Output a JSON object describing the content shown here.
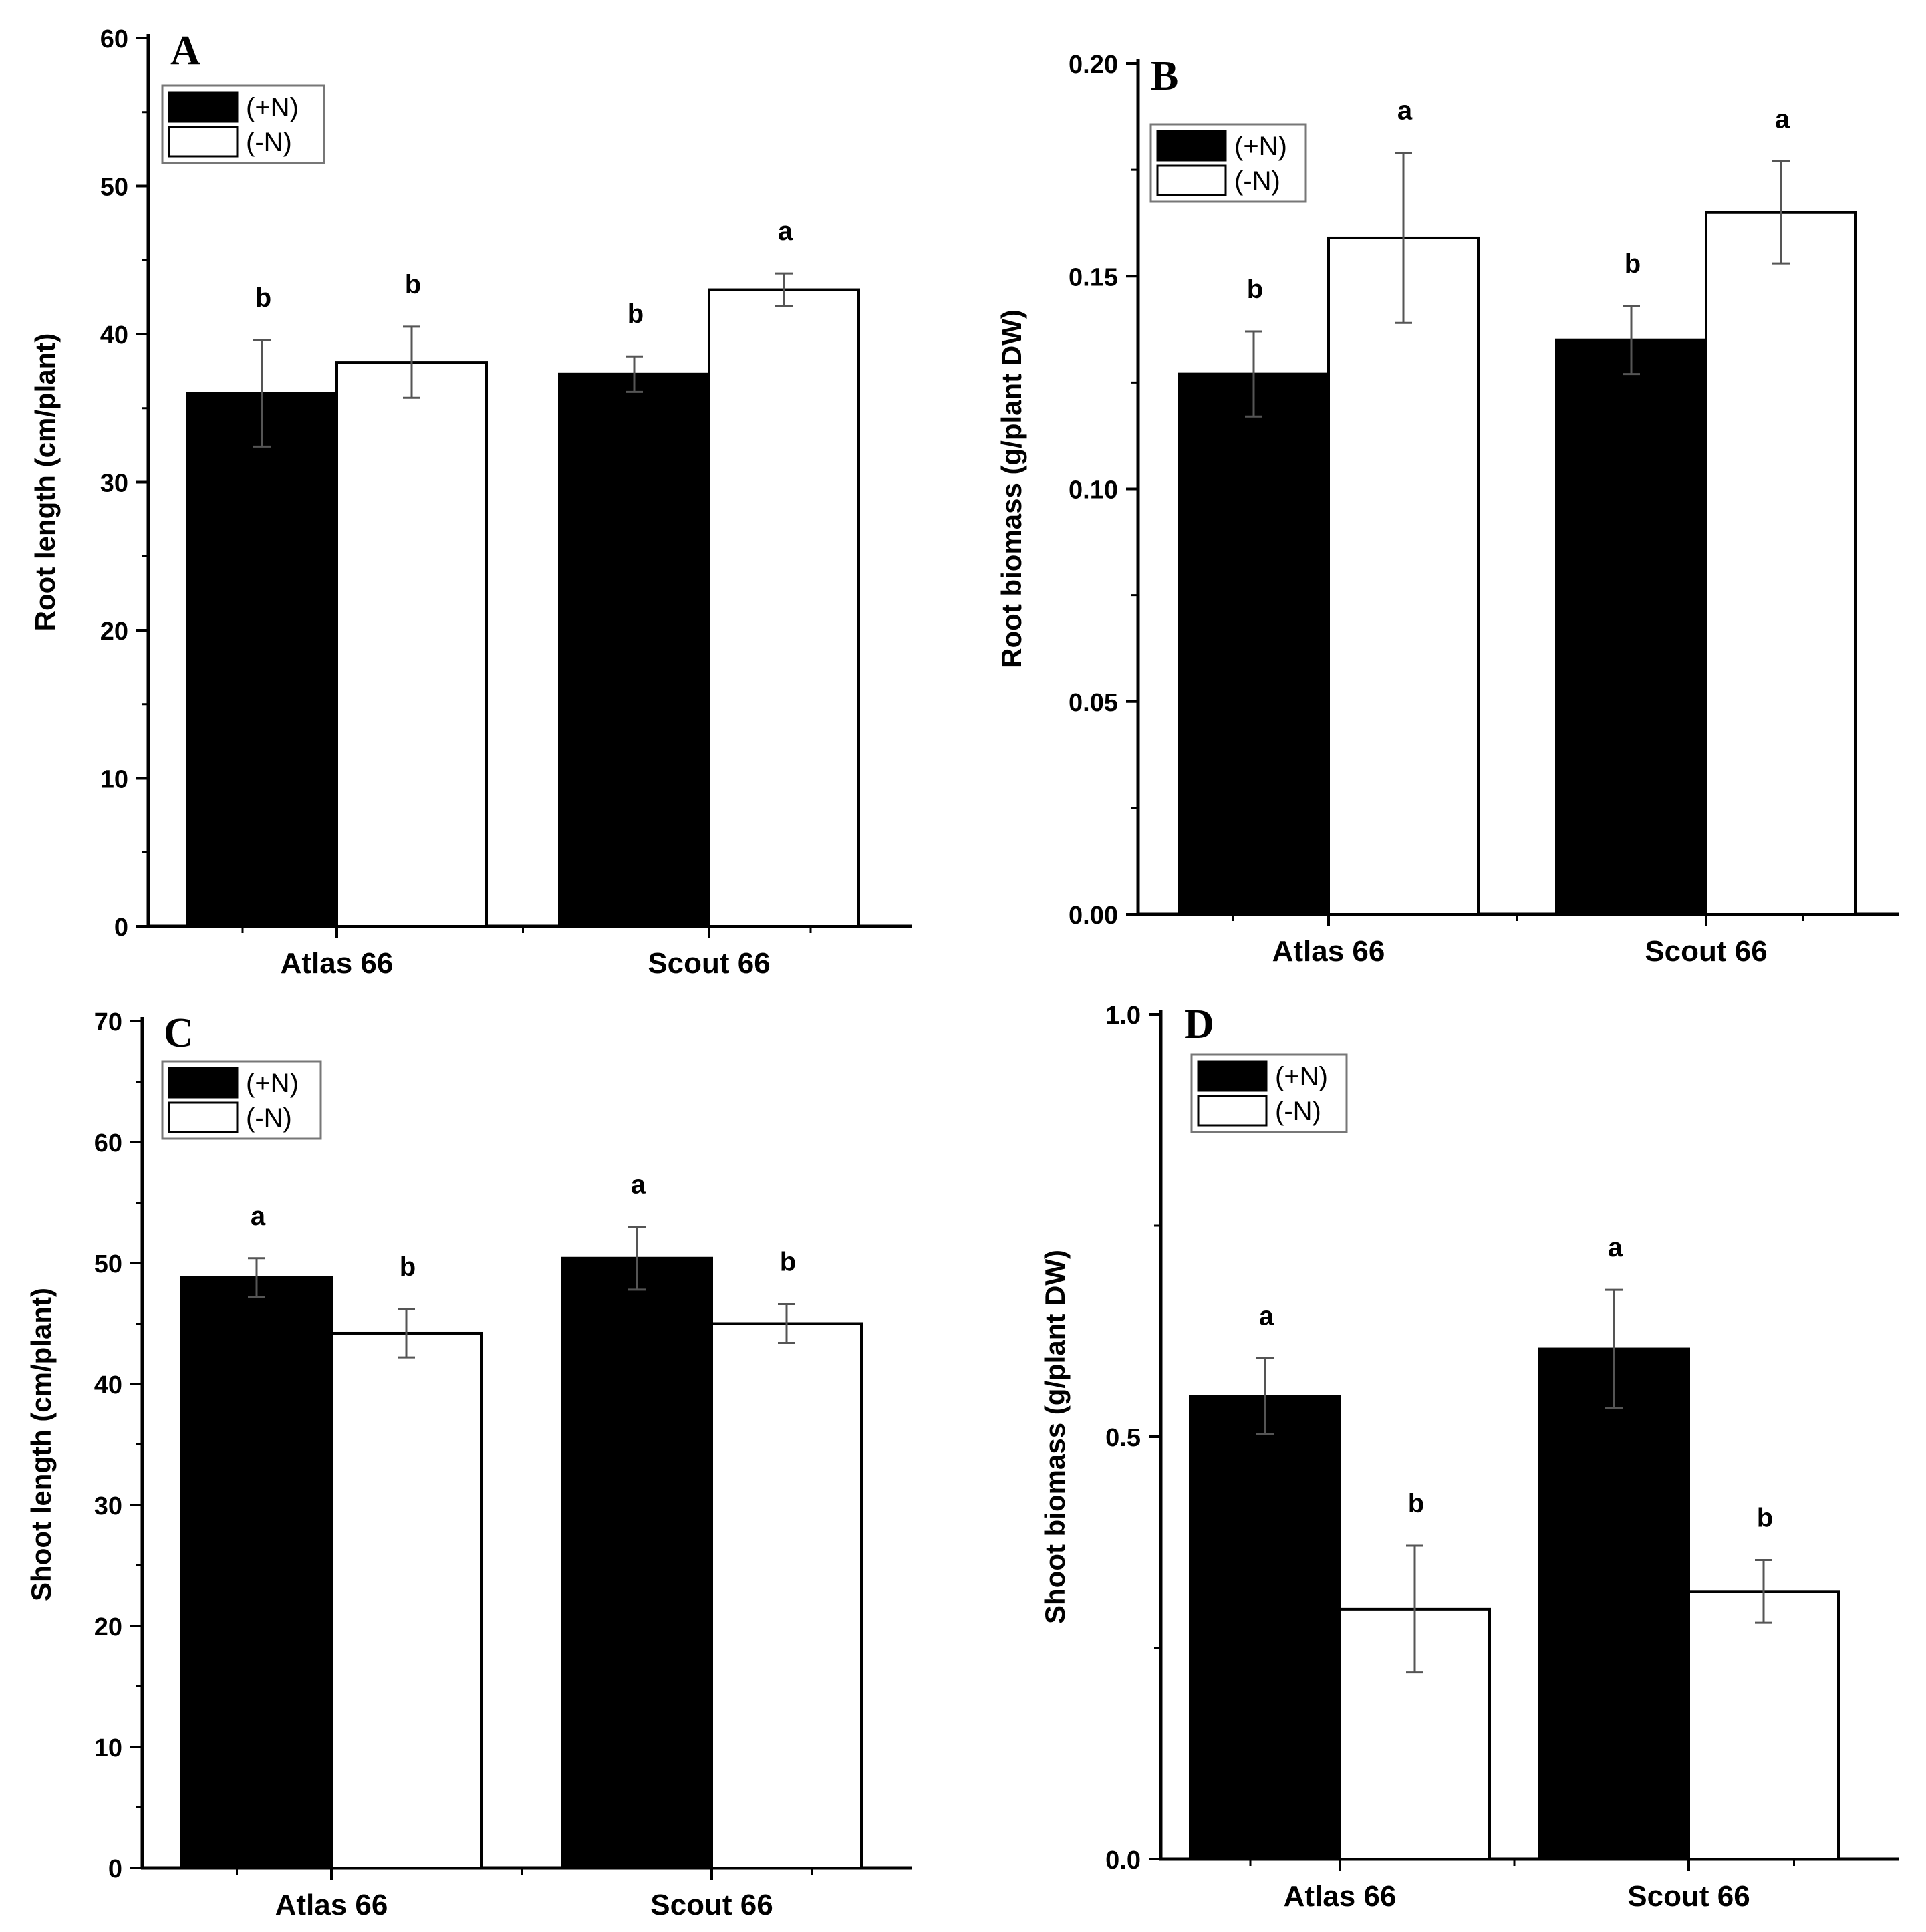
{
  "chart_data": [
    {
      "type": "bar",
      "panel_label": "A",
      "categories": [
        "Atlas 66",
        "Scout 66"
      ],
      "series": [
        {
          "name": "(+N)",
          "color": "#000000",
          "values": [
            36.0,
            37.3
          ],
          "errors": [
            3.6,
            1.2
          ],
          "letters": [
            "b",
            "b"
          ]
        },
        {
          "name": "(-N)",
          "color": "#ffffff",
          "values": [
            38.1,
            43.0
          ],
          "errors": [
            2.4,
            1.1
          ],
          "letters": [
            "b",
            "a"
          ]
        }
      ],
      "ylabel": "Root length (cm/plant)",
      "ylim": [
        0,
        60
      ],
      "yticks": [
        "0",
        "10",
        "20",
        "30",
        "40",
        "50",
        "60"
      ],
      "ytick_values": [
        0,
        10,
        20,
        30,
        40,
        50,
        60
      ],
      "legend": "top-left"
    },
    {
      "type": "bar",
      "panel_label": "B",
      "categories": [
        "Atlas 66",
        "Scout 66"
      ],
      "series": [
        {
          "name": "(+N)",
          "color": "#000000",
          "values": [
            0.127,
            0.135
          ],
          "errors": [
            0.01,
            0.008
          ],
          "letters": [
            "b",
            "b"
          ]
        },
        {
          "name": "(-N)",
          "color": "#ffffff",
          "values": [
            0.159,
            0.165
          ],
          "errors": [
            0.02,
            0.012
          ],
          "letters": [
            "a",
            "a"
          ]
        }
      ],
      "ylabel": "Root biomass (g/plant DW)",
      "ylim": [
        0,
        0.2
      ],
      "yticks": [
        "0.00",
        "0.05",
        "0.10",
        "0.15",
        "0.20"
      ],
      "ytick_values": [
        0,
        0.05,
        0.1,
        0.15,
        0.2
      ],
      "legend": "top-left"
    },
    {
      "type": "bar",
      "panel_label": "C",
      "categories": [
        "Atlas 66",
        "Scout 66"
      ],
      "series": [
        {
          "name": "(+N)",
          "color": "#000000",
          "values": [
            48.8,
            50.4
          ],
          "errors": [
            1.6,
            2.6
          ],
          "letters": [
            "a",
            "a"
          ]
        },
        {
          "name": "(-N)",
          "color": "#ffffff",
          "values": [
            44.2,
            45.0
          ],
          "errors": [
            2.0,
            1.6
          ],
          "letters": [
            "b",
            "b"
          ]
        }
      ],
      "ylabel": "Shoot length (cm/plant)",
      "ylim": [
        0,
        70
      ],
      "yticks": [
        "0",
        "10",
        "20",
        "30",
        "40",
        "50",
        "60",
        "70"
      ],
      "ytick_values": [
        0,
        10,
        20,
        30,
        40,
        50,
        60,
        70
      ],
      "legend": "top-left"
    },
    {
      "type": "bar",
      "panel_label": "D",
      "categories": [
        "Atlas 66",
        "Scout 66"
      ],
      "series": [
        {
          "name": "(+N)",
          "color": "#000000",
          "values": [
            0.548,
            0.604
          ],
          "errors": [
            0.045,
            0.07
          ],
          "letters": [
            "a",
            "a"
          ]
        },
        {
          "name": "(-N)",
          "color": "#ffffff",
          "values": [
            0.296,
            0.317
          ],
          "errors": [
            0.075,
            0.037
          ],
          "letters": [
            "b",
            "b"
          ]
        }
      ],
      "ylabel": "Shoot biomass (g/plant DW)",
      "ylim": [
        0,
        1.0
      ],
      "yticks": [
        "0.0",
        "0.5",
        "1.0"
      ],
      "ytick_values": [
        0,
        0.5,
        1.0
      ],
      "legend": "top-left"
    }
  ]
}
